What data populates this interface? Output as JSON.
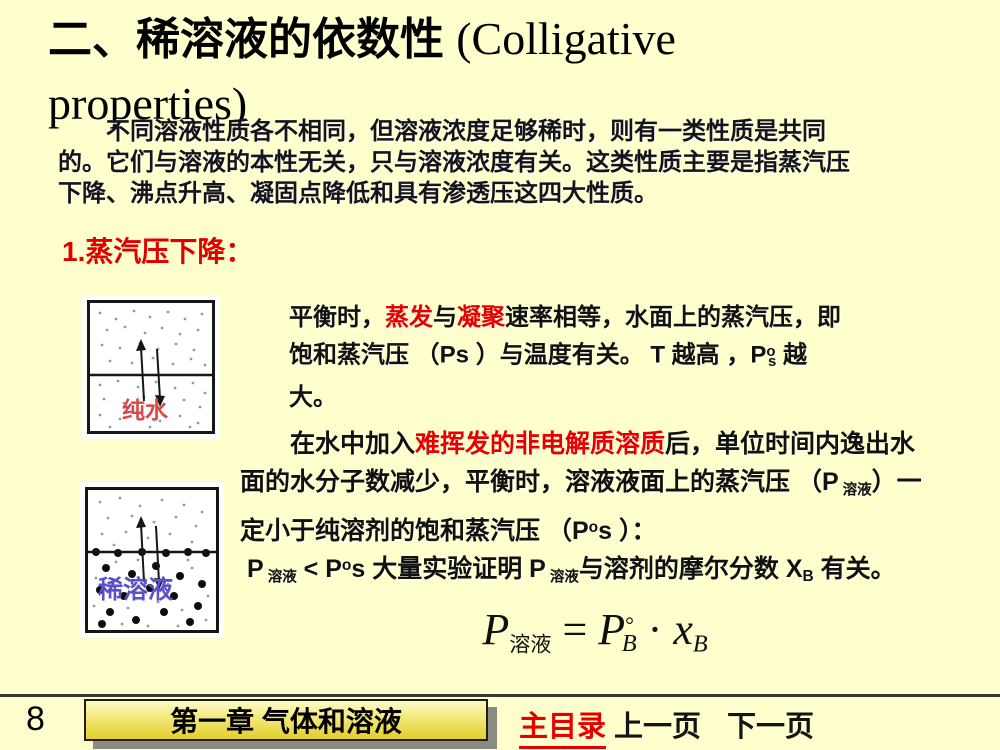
{
  "colors": {
    "background": "#ffffce",
    "emphasis_red": "#e80000",
    "pure_water_label_red": "#d84848",
    "dilute_solution_label_blue": "#5a50c8",
    "button_yellow": "#e2ce2c",
    "footer_line_gray": "#383838"
  },
  "slide": {
    "title": [
      {
        "t": "二、稀溶液的依数性 ",
        "c": "zh"
      },
      {
        "t": "(Colligative properties)",
        "c": "en"
      }
    ],
    "intro": [
      {
        "t": "不同溶液性质各不相同，但溶液浓度足够稀时，则有一类性质是共同的。它们与溶液的本性无关，只与溶液浓度有关。这类性质主要是指蒸汽压下降、沸点升高、凝固点降低和具有渗透压这四大性质。"
      }
    ],
    "section1_heading": "1.蒸汽压下降：",
    "figure1": {
      "label": "纯水"
    },
    "figure2": {
      "label": "稀溶液"
    },
    "para_equilibrium": [
      {
        "t": "平衡时，"
      },
      {
        "t": "蒸发",
        "c": "red"
      },
      {
        "t": "与"
      },
      {
        "t": "凝聚",
        "c": "red"
      },
      {
        "t": "速率相等，水面上的蒸汽压，即饱和蒸汽压 （Ps ）与温度有关。 T 越高 ，P"
      },
      {
        "t": "o",
        "c": "sup"
      },
      {
        "t": "s",
        "c": "sub pull"
      },
      {
        "t": " 越大。"
      }
    ],
    "para_solute": [
      {
        "t": "在水中加入"
      },
      {
        "t": "难挥发的非电解质溶质",
        "c": "red"
      },
      {
        "t": "后，单位时间内逸出水面的水分子数减少，平衡时，溶液液面上的蒸汽压 （P"
      },
      {
        "t": " 溶液",
        "c": "subzh"
      },
      {
        "t": "）一定小于纯溶剂的饱和蒸汽压 （P"
      },
      {
        "t": "o",
        "c": "sup"
      },
      {
        "t": "s ）："
      }
    ],
    "para_experiment": [
      {
        "t": "P"
      },
      {
        "t": " 溶液",
        "c": "subzh"
      },
      {
        "t": " < P"
      },
      {
        "t": "o",
        "c": "sup"
      },
      {
        "t": "s  大量实验证明 P"
      },
      {
        "t": " 溶液",
        "c": "subzh"
      },
      {
        "t": "与溶剂的摩尔分数 X"
      },
      {
        "t": "B",
        "c": "sub"
      },
      {
        "t": " 有关。"
      }
    ],
    "formula": [
      {
        "t": "P",
        "c": "fit"
      },
      {
        "t": "溶液",
        "c": "fsubzh"
      },
      {
        "t": " = ",
        "c": "feq"
      },
      {
        "t": "P",
        "c": "fit"
      },
      {
        "t": "°",
        "c": "fsup"
      },
      {
        "t": "B",
        "c": "fsub pull"
      },
      {
        "t": " · "
      },
      {
        "t": "x",
        "c": "fit"
      },
      {
        "t": "B",
        "c": "fsub"
      }
    ]
  },
  "footer": {
    "page_number": "8",
    "chapter_button": "第一章 气体和溶液",
    "main_menu": "主目录",
    "prev_page": "上一页",
    "next_page": "下一页"
  }
}
